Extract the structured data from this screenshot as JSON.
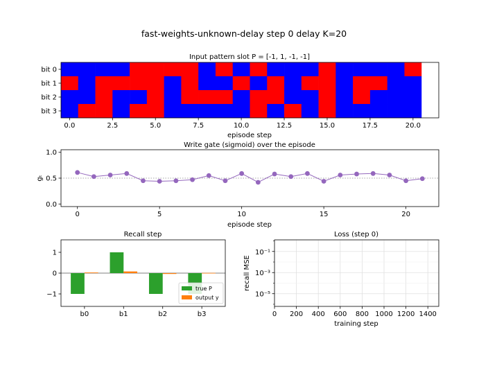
{
  "suptitle": "fast-weights-unknown-delay   step 0   delay K=20",
  "chart_data": [
    {
      "type": "heatmap",
      "title": "Input pattern slot   P = [-1, 1, -1, -1]",
      "xlabel": "episode step",
      "ylabel": "",
      "rows": [
        "bit 0",
        "bit 1",
        "bit 2",
        "bit 3"
      ],
      "xticks": [
        "0.0",
        "2.5",
        "5.0",
        "7.5",
        "10.0",
        "12.5",
        "15.0",
        "17.5",
        "20.0"
      ],
      "xlim": [
        -0.5,
        21.5
      ],
      "colors": {
        "-1": "#0000ff",
        "1": "#ff0000",
        "empty": "#ffffff"
      },
      "values": [
        [
          -1,
          -1,
          -1,
          -1,
          1,
          1,
          1,
          1,
          -1,
          1,
          -1,
          1,
          -1,
          -1,
          -1,
          1,
          -1,
          -1,
          -1,
          -1,
          1,
          null
        ],
        [
          1,
          -1,
          1,
          1,
          1,
          1,
          -1,
          1,
          -1,
          -1,
          1,
          -1,
          1,
          -1,
          1,
          1,
          -1,
          1,
          1,
          -1,
          -1,
          null
        ],
        [
          -1,
          -1,
          1,
          -1,
          -1,
          1,
          -1,
          1,
          1,
          1,
          -1,
          1,
          1,
          -1,
          -1,
          1,
          -1,
          1,
          -1,
          -1,
          -1,
          null
        ],
        [
          -1,
          1,
          1,
          -1,
          1,
          1,
          -1,
          -1,
          -1,
          -1,
          -1,
          1,
          -1,
          1,
          -1,
          1,
          -1,
          -1,
          -1,
          -1,
          -1,
          null
        ]
      ]
    },
    {
      "type": "line",
      "title": "Write gate (sigmoid) over the episode",
      "xlabel": "episode step",
      "ylabel": "gₜ",
      "x": [
        0,
        1,
        2,
        3,
        4,
        5,
        6,
        7,
        8,
        9,
        10,
        11,
        12,
        13,
        14,
        15,
        16,
        17,
        18,
        19,
        20,
        21
      ],
      "values": [
        0.61,
        0.53,
        0.56,
        0.59,
        0.45,
        0.44,
        0.45,
        0.47,
        0.55,
        0.45,
        0.59,
        0.42,
        0.58,
        0.53,
        0.59,
        0.44,
        0.56,
        0.58,
        0.59,
        0.56,
        0.45,
        0.49
      ],
      "reference_line": 0.5,
      "xlim": [
        -1,
        22
      ],
      "ylim": [
        -0.05,
        1.05
      ],
      "xticks": [
        "0",
        "5",
        "10",
        "15",
        "20"
      ],
      "yticks": [
        "0.0",
        "0.5",
        "1.0"
      ],
      "color": "#9467bd"
    },
    {
      "type": "bar",
      "title": "Recall step",
      "categories": [
        "b0",
        "b1",
        "b2",
        "b3"
      ],
      "series": [
        {
          "name": "true P",
          "values": [
            -1,
            1,
            -1,
            -1
          ],
          "color": "#2ca02c"
        },
        {
          "name": "output y",
          "values": [
            0.03,
            0.08,
            -0.04,
            0.01
          ],
          "color": "#ff7f0e"
        }
      ],
      "ylim": [
        -1.6,
        1.6
      ],
      "yticks": [
        "−1",
        "0",
        "1"
      ],
      "legend": "lower-right"
    },
    {
      "type": "line",
      "title": "Loss (step 0)",
      "xlabel": "training step",
      "ylabel": "recall MSE",
      "scale": "log",
      "values": [],
      "xlim": [
        0,
        1500
      ],
      "xticks": [
        "0",
        "200",
        "400",
        "600",
        "800",
        "1000",
        "1200",
        "1400"
      ],
      "yticks": [
        "10⁻¹",
        "10⁻³",
        "10⁻⁵"
      ],
      "grid": true
    }
  ]
}
